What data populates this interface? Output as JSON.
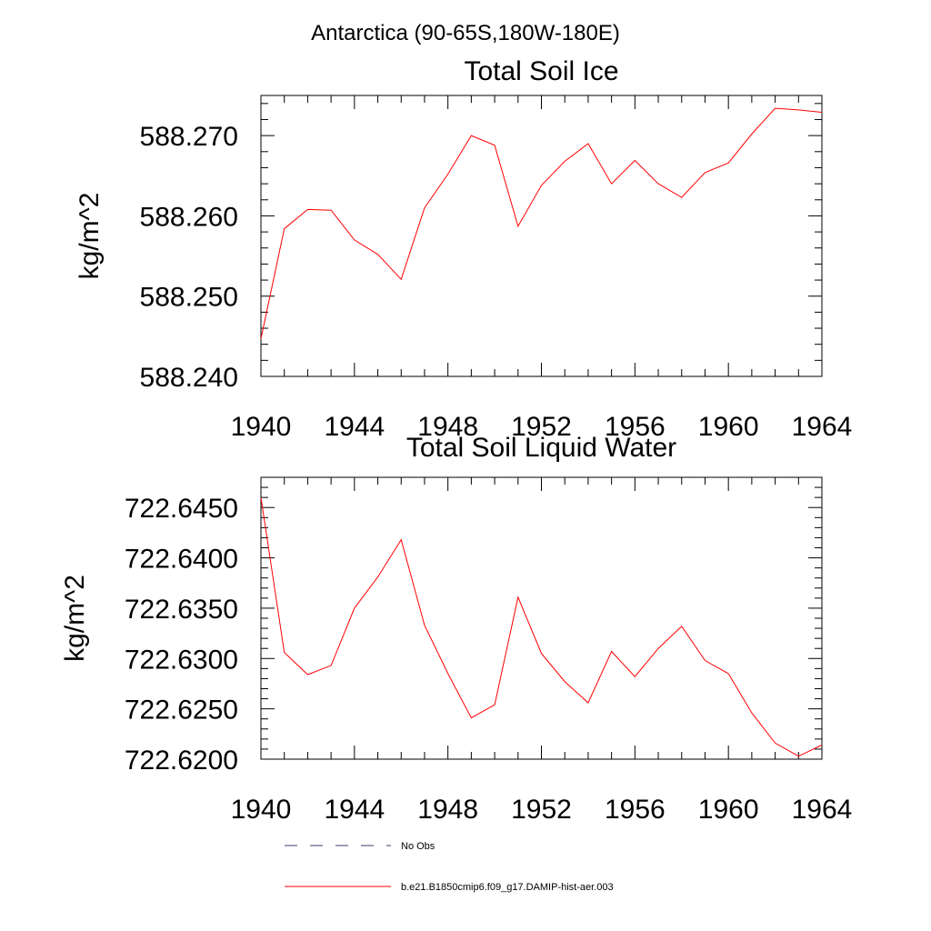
{
  "suptitle": "Antarctica (90-65S,180W-180E)",
  "chart_data": [
    {
      "type": "line",
      "title": "Total Soil Ice",
      "xlabel": "",
      "ylabel": "kg/m^2",
      "xlim": [
        1940,
        1964
      ],
      "ylim": [
        588.24,
        588.275
      ],
      "xticks": [
        1940,
        1944,
        1948,
        1952,
        1956,
        1960,
        1964
      ],
      "xtick_labels": [
        "1940",
        "1944",
        "1948",
        "1952",
        "1956",
        "1960",
        "1964"
      ],
      "yticks": [
        588.24,
        588.25,
        588.26,
        588.27
      ],
      "ytick_labels": [
        "588.240",
        "588.250",
        "588.260",
        "588.270"
      ],
      "y_minor_step": 0.002,
      "x_minor_step": 1,
      "x": [
        1940,
        1941,
        1942,
        1943,
        1944,
        1945,
        1946,
        1947,
        1948,
        1949,
        1950,
        1951,
        1952,
        1953,
        1954,
        1955,
        1956,
        1957,
        1958,
        1959,
        1960,
        1961,
        1962,
        1963,
        1964
      ],
      "series": [
        {
          "name": "b.e21.B1850cmip6.f09_g17.DAMIP-hist-aer.003",
          "color": "#ff0000",
          "values": [
            588.2447,
            588.2584,
            588.2608,
            588.2607,
            588.257,
            588.2552,
            588.2521,
            588.261,
            588.2652,
            588.27,
            588.2688,
            588.2587,
            588.2638,
            588.2668,
            588.269,
            588.264,
            588.2669,
            588.264,
            588.2623,
            588.2654,
            588.2666,
            588.2702,
            588.2734,
            588.2732,
            588.2729
          ]
        }
      ]
    },
    {
      "type": "line",
      "title": "Total Soil Liquid Water",
      "xlabel": "",
      "ylabel": "kg/m^2",
      "xlim": [
        1940,
        1964
      ],
      "ylim": [
        722.62,
        722.648
      ],
      "xticks": [
        1940,
        1944,
        1948,
        1952,
        1956,
        1960,
        1964
      ],
      "xtick_labels": [
        "1940",
        "1944",
        "1948",
        "1952",
        "1956",
        "1960",
        "1964"
      ],
      "yticks": [
        722.62,
        722.625,
        722.63,
        722.635,
        722.64,
        722.645
      ],
      "ytick_labels": [
        "722.6200",
        "722.6250",
        "722.6300",
        "722.6350",
        "722.6400",
        "722.6450"
      ],
      "y_minor_step": 0.001,
      "x_minor_step": 1,
      "x": [
        1940,
        1941,
        1942,
        1943,
        1944,
        1945,
        1946,
        1947,
        1948,
        1949,
        1950,
        1951,
        1952,
        1953,
        1954,
        1955,
        1956,
        1957,
        1958,
        1959,
        1960,
        1961,
        1962,
        1963,
        1964
      ],
      "series": [
        {
          "name": "b.e21.B1850cmip6.f09_g17.DAMIP-hist-aer.003",
          "color": "#ff0000",
          "values": [
            722.646,
            722.6306,
            722.6284,
            722.6293,
            722.635,
            722.6381,
            722.6418,
            722.6333,
            722.6285,
            722.6241,
            722.6254,
            722.6361,
            722.6305,
            722.6277,
            722.6256,
            722.6307,
            722.6282,
            722.631,
            722.6332,
            722.6298,
            722.6285,
            722.6246,
            722.6216,
            722.6203,
            722.6214
          ]
        }
      ]
    }
  ],
  "legend": {
    "placement": "bottom-left",
    "items": [
      {
        "label": "No Obs",
        "style": "dashed",
        "color": "#3b3b6b"
      },
      {
        "label": "b.e21.B1850cmip6.f09_g17.DAMIP-hist-aer.003",
        "style": "solid",
        "color": "#ff0000"
      }
    ]
  }
}
